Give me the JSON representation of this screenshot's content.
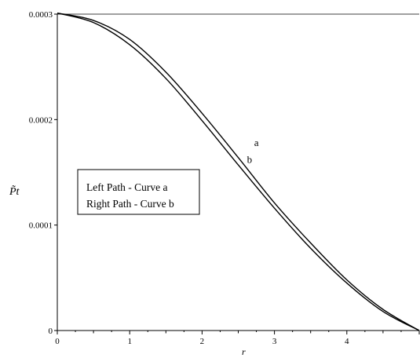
{
  "chart_data": {
    "type": "line",
    "xlabel": "r",
    "ylabel": "P̃t",
    "xlim": [
      0,
      5
    ],
    "ylim": [
      0,
      0.0003
    ],
    "xticks": [
      0,
      1,
      2,
      3,
      4
    ],
    "xtick_labels": [
      "0",
      "1",
      "2",
      "3",
      "4"
    ],
    "yticks": [
      0,
      0.0001,
      0.0002,
      0.0003
    ],
    "ytick_labels": [
      "0",
      "0.0001",
      "0.0002",
      "0.0003"
    ],
    "grid": false,
    "series": [
      {
        "name": "a",
        "color": "#000000",
        "x": [
          0,
          0.5,
          1,
          1.5,
          2,
          2.5,
          3,
          3.5,
          4,
          4.5,
          5
        ],
        "y": [
          0.000301,
          0.000294,
          0.000276,
          0.000245,
          0.000206,
          0.000164,
          0.000121,
          8.3e-05,
          4.8e-05,
          2e-05,
          0
        ]
      },
      {
        "name": "b",
        "color": "#000000",
        "x": [
          0,
          0.5,
          1,
          1.5,
          2,
          2.5,
          3,
          3.5,
          4,
          4.5,
          5
        ],
        "y": [
          0.000301,
          0.000292,
          0.000271,
          0.000239,
          0.000199,
          0.000157,
          0.000116,
          7.8e-05,
          4.5e-05,
          1.8e-05,
          0
        ]
      }
    ],
    "annotations": [
      {
        "text": "a",
        "x": 2.72,
        "y": 0.000175
      },
      {
        "text": "b",
        "x": 2.62,
        "y": 0.000159
      }
    ],
    "legend_box": {
      "position": "center-left",
      "lines": [
        "Left Path - Curve a",
        "Right Path - Curve b"
      ]
    }
  }
}
